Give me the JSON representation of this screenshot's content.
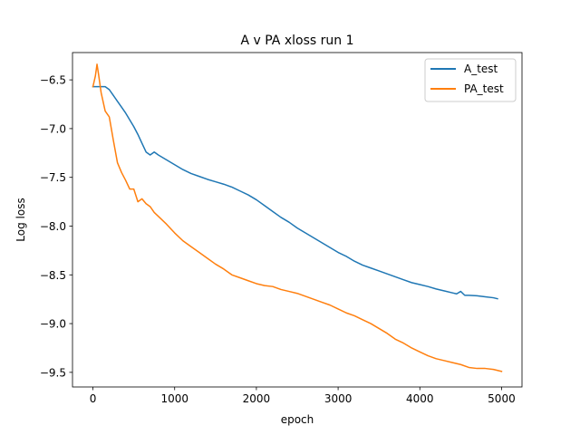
{
  "chart_data": {
    "type": "line",
    "title": "A v PA xloss run 1",
    "xlabel": "epoch",
    "ylabel": "Log loss",
    "xlim": [
      -250,
      5250
    ],
    "ylim": [
      -9.65,
      -6.22
    ],
    "xticks": [
      0,
      1000,
      2000,
      3000,
      4000,
      5000
    ],
    "xtick_labels": [
      "0",
      "1000",
      "2000",
      "3000",
      "4000",
      "5000"
    ],
    "yticks": [
      -6.5,
      -7.0,
      -7.5,
      -8.0,
      -8.5,
      -9.0,
      -9.5
    ],
    "ytick_labels": [
      "−6.5",
      "−7.0",
      "−7.5",
      "−8.0",
      "−8.5",
      "−9.0",
      "−9.5"
    ],
    "grid": false,
    "legend_position": "top-right",
    "series": [
      {
        "name": "A_test",
        "color": "#1f77b4",
        "x": [
          0,
          50,
          100,
          150,
          200,
          250,
          300,
          350,
          400,
          450,
          500,
          550,
          600,
          650,
          700,
          750,
          800,
          900,
          1000,
          1100,
          1200,
          1300,
          1400,
          1500,
          1600,
          1700,
          1800,
          1900,
          2000,
          2100,
          2200,
          2300,
          2400,
          2500,
          2600,
          2700,
          2800,
          2900,
          3000,
          3100,
          3200,
          3300,
          3400,
          3500,
          3600,
          3700,
          3800,
          3900,
          4000,
          4100,
          4200,
          4300,
          4400,
          4450,
          4500,
          4550,
          4600,
          4700,
          4800,
          4900,
          4950
        ],
        "y": [
          -6.57,
          -6.57,
          -6.57,
          -6.57,
          -6.6,
          -6.66,
          -6.72,
          -6.78,
          -6.84,
          -6.91,
          -6.98,
          -7.06,
          -7.15,
          -7.24,
          -7.27,
          -7.24,
          -7.27,
          -7.32,
          -7.37,
          -7.42,
          -7.46,
          -7.49,
          -7.52,
          -7.545,
          -7.57,
          -7.6,
          -7.64,
          -7.68,
          -7.73,
          -7.79,
          -7.85,
          -7.91,
          -7.96,
          -8.02,
          -8.07,
          -8.12,
          -8.17,
          -8.22,
          -8.27,
          -8.31,
          -8.36,
          -8.4,
          -8.43,
          -8.46,
          -8.49,
          -8.52,
          -8.55,
          -8.58,
          -8.6,
          -8.62,
          -8.645,
          -8.665,
          -8.685,
          -8.695,
          -8.67,
          -8.71,
          -8.71,
          -8.715,
          -8.725,
          -8.735,
          -8.745
        ]
      },
      {
        "name": "PA_test",
        "color": "#ff7f0e",
        "x": [
          0,
          30,
          50,
          70,
          100,
          150,
          200,
          250,
          300,
          350,
          400,
          450,
          500,
          550,
          600,
          650,
          700,
          750,
          800,
          900,
          1000,
          1100,
          1200,
          1300,
          1400,
          1500,
          1600,
          1700,
          1800,
          1900,
          2000,
          2100,
          2200,
          2300,
          2400,
          2500,
          2600,
          2700,
          2800,
          2900,
          3000,
          3100,
          3200,
          3300,
          3400,
          3500,
          3600,
          3700,
          3800,
          3900,
          4000,
          4100,
          4200,
          4300,
          4400,
          4500,
          4600,
          4700,
          4800,
          4900,
          5000
        ],
        "y": [
          -6.57,
          -6.46,
          -6.34,
          -6.45,
          -6.63,
          -6.82,
          -6.88,
          -7.12,
          -7.35,
          -7.45,
          -7.53,
          -7.62,
          -7.62,
          -7.75,
          -7.72,
          -7.77,
          -7.8,
          -7.86,
          -7.9,
          -7.98,
          -8.07,
          -8.15,
          -8.21,
          -8.27,
          -8.33,
          -8.39,
          -8.44,
          -8.5,
          -8.53,
          -8.56,
          -8.59,
          -8.61,
          -8.62,
          -8.65,
          -8.67,
          -8.69,
          -8.72,
          -8.75,
          -8.78,
          -8.81,
          -8.85,
          -8.89,
          -8.92,
          -8.96,
          -9.0,
          -9.05,
          -9.1,
          -9.16,
          -9.2,
          -9.25,
          -9.29,
          -9.33,
          -9.36,
          -9.38,
          -9.4,
          -9.42,
          -9.45,
          -9.46,
          -9.46,
          -9.47,
          -9.49
        ]
      }
    ]
  }
}
